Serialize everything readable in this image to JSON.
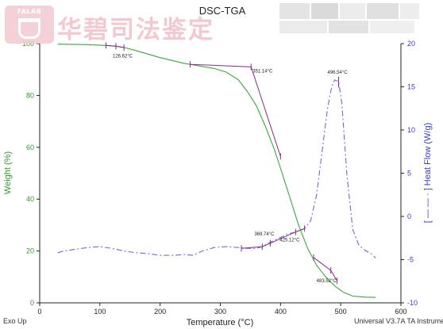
{
  "watermark": {
    "seal_text": "FALAB",
    "lab_name": "华碧司法鉴定"
  },
  "footer": {
    "left": "Exo Up",
    "right": "Universal V3.7A TA Instruments"
  },
  "chart_data": {
    "type": "line",
    "title": "DSC-TGA",
    "xlabel": "Temperature (°C)",
    "ylabel_left": "Weight (%)",
    "ylabel_right": "[ — — · ] Heat Flow (W/g)",
    "xlim": [
      0,
      600
    ],
    "ylim_left": [
      0,
      100
    ],
    "ylim_right": [
      -10,
      20
    ],
    "x_ticks": [
      0,
      100,
      200,
      300,
      400,
      500,
      600
    ],
    "y_left_ticks": [
      0,
      20,
      40,
      60,
      80,
      100
    ],
    "y_right_ticks": [
      -10,
      -5,
      0,
      5,
      10,
      15,
      20
    ],
    "grid": false,
    "colors": {
      "weight": "#3aa83a",
      "heat_flow": "#6a6ae0",
      "annotation": "#8a2a8a",
      "axis": "#222222",
      "left_axis_text": "#2e9a2e",
      "right_axis_text": "#3a3ad0"
    },
    "series": [
      {
        "axis": "left",
        "style": "solid",
        "x": [
          30,
          80,
          110,
          126.6,
          140,
          160,
          200,
          240,
          260,
          290,
          310,
          330,
          345,
          360,
          375,
          390,
          400,
          415,
          430,
          445,
          460,
          475,
          490,
          505,
          520,
          540,
          558
        ],
        "y": [
          99.8,
          99.6,
          99.3,
          99.0,
          98.5,
          97.3,
          94.6,
          92.4,
          91.6,
          90.4,
          89.0,
          86.0,
          81.5,
          76.0,
          68.0,
          59.0,
          52.0,
          41.0,
          30.0,
          21.0,
          14.5,
          10.0,
          6.5,
          4.0,
          2.6,
          2.2,
          2.1
        ]
      },
      {
        "axis": "right",
        "style": "dash-dot",
        "x": [
          30,
          40,
          60,
          80,
          100,
          120,
          140,
          160,
          180,
          200,
          220,
          240,
          255,
          270,
          290,
          310,
          330,
          345,
          360,
          369.7,
          380,
          395,
          410,
          425.1,
          440,
          450,
          460,
          470,
          478,
          485,
          490,
          496.5,
          502,
          510,
          520,
          530,
          540,
          550,
          558
        ],
        "y": [
          -4.2,
          -4.0,
          -3.8,
          -3.6,
          -3.5,
          -3.7,
          -4.0,
          -4.2,
          -4.3,
          -4.5,
          -4.5,
          -4.4,
          -4.5,
          -4.0,
          -3.6,
          -3.5,
          -3.6,
          -3.7,
          -3.7,
          -3.5,
          -3.1,
          -2.6,
          -2.1,
          -1.8,
          -1.4,
          -0.5,
          2.5,
          8.0,
          12.5,
          15.0,
          15.8,
          15.6,
          13.0,
          5.0,
          -1.5,
          -3.3,
          -3.9,
          -4.3,
          -4.8
        ]
      }
    ],
    "annotations": [
      {
        "label": "126.62°C",
        "x": 126.6,
        "y": 99.0,
        "axis": "left"
      },
      {
        "label": "351.14°C",
        "x": 351.1,
        "y": 91.0,
        "axis": "left"
      },
      {
        "label": "496.54°C",
        "x": 496.5,
        "y": 15.8,
        "axis": "right"
      },
      {
        "label": "425.12°C",
        "x": 425.1,
        "y": -1.8,
        "axis": "right"
      },
      {
        "label": "369.74°C",
        "x": 369.7,
        "y": -3.5,
        "axis": "right"
      },
      {
        "label": "483.52°C",
        "x": 483.5,
        "y": 16.5,
        "axis": "left"
      }
    ]
  }
}
